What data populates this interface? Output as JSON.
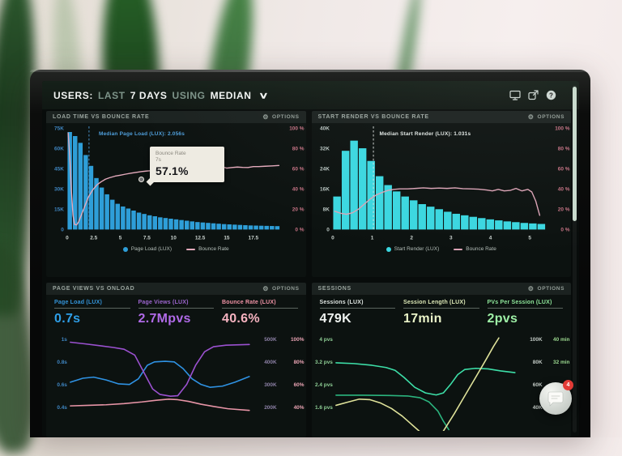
{
  "shared": {
    "options_label": "OPTIONS",
    "gear_glyph": "⚙"
  },
  "header": {
    "part1": "USERS:",
    "part2": "LAST",
    "part3": "7 DAYS",
    "part4": "USING",
    "part5": "MEDIAN",
    "chevron": "∨",
    "icons": [
      "monitor-icon",
      "share-icon",
      "help-icon"
    ]
  },
  "chat": {
    "badge": "4"
  },
  "chart_data": [
    {
      "type": "histogram",
      "title": "LOAD TIME VS BOUNCE RATE",
      "left_ticks": [
        "75K",
        "60K",
        "45K",
        "30K",
        "15K",
        "0"
      ],
      "right_ticks": [
        "100 %",
        "80 %",
        "60 %",
        "40 %",
        "20 %",
        "0 %"
      ],
      "x_ticks": [
        {
          "v": 0,
          "label": "0"
        },
        {
          "v": 2.5,
          "label": "2.5"
        },
        {
          "v": 5,
          "label": "5"
        },
        {
          "v": 7.5,
          "label": "7.5"
        },
        {
          "v": 10,
          "label": "10"
        },
        {
          "v": 12.5,
          "label": "12.5"
        },
        {
          "v": 15,
          "label": "15"
        },
        {
          "v": 17.5,
          "label": "17.5"
        }
      ],
      "x_max": 20,
      "y_max": 75,
      "bars": [
        72,
        69,
        64,
        55,
        47,
        38,
        31,
        26,
        22,
        19,
        17,
        15.5,
        14,
        12.5,
        11.5,
        10.5,
        9.8,
        9,
        8.5,
        8,
        7.5,
        7,
        6.5,
        6,
        5.5,
        5.2,
        4.9,
        4.6,
        4.3,
        4,
        3.8,
        3.6,
        3.4,
        3.2,
        3,
        2.9,
        2.8,
        2.7,
        2.6,
        2.5
      ],
      "bar_color": "#2e9ed8",
      "line_color": "#e4aabc",
      "line": [
        [
          0.1,
          95
        ],
        [
          0.25,
          72
        ],
        [
          0.4,
          38
        ],
        [
          0.55,
          14
        ],
        [
          0.7,
          5
        ],
        [
          0.9,
          4.5
        ],
        [
          1.1,
          8
        ],
        [
          1.4,
          16
        ],
        [
          1.7,
          24
        ],
        [
          2,
          32
        ],
        [
          2.4,
          39
        ],
        [
          2.8,
          44
        ],
        [
          3.2,
          47
        ],
        [
          3.6,
          49.5
        ],
        [
          4,
          51
        ],
        [
          4.5,
          52.5
        ],
        [
          5,
          53.5
        ],
        [
          5.5,
          54.5
        ],
        [
          6,
          55.5
        ],
        [
          6.5,
          56.3
        ],
        [
          7,
          57.1
        ],
        [
          7.5,
          57.6
        ],
        [
          8,
          58
        ],
        [
          8.5,
          58
        ],
        [
          9,
          58.3
        ],
        [
          9.5,
          59
        ],
        [
          10,
          59.5
        ],
        [
          10.5,
          60
        ],
        [
          11,
          60.4
        ],
        [
          11.5,
          61
        ],
        [
          12,
          61
        ],
        [
          12.5,
          60
        ],
        [
          12.9,
          62.8
        ],
        [
          13.2,
          62
        ],
        [
          13.6,
          60.5
        ],
        [
          14,
          62
        ],
        [
          14.5,
          62
        ],
        [
          15,
          60.5
        ],
        [
          15.5,
          61
        ],
        [
          16,
          61.5
        ],
        [
          16.5,
          61.2
        ],
        [
          17,
          61
        ],
        [
          17.5,
          62
        ],
        [
          18,
          62
        ],
        [
          18.6,
          62.3
        ],
        [
          19.3,
          62.6
        ],
        [
          19.9,
          63
        ]
      ],
      "median_x": 2.056,
      "median_label": "Median Page Load (LUX): 2.056s",
      "median_color": "#4f9fdc",
      "tooltip": {
        "title": "Bounce Rate",
        "sub": "7s",
        "value": "57.1%"
      },
      "legend": [
        {
          "label": "Page Load (LUX)",
          "color": "#2e9ed8"
        },
        {
          "label": "Bounce Rate",
          "color": "#e4aabc"
        }
      ],
      "left_tick_color": "#3f86c2",
      "right_tick_color": "#c47183",
      "x_tick_color": "#ccd5d1"
    },
    {
      "type": "histogram",
      "title": "START RENDER VS BOUNCE RATE",
      "left_ticks": [
        "40K",
        "32K",
        "24K",
        "16K",
        "8K",
        "0"
      ],
      "right_ticks": [
        "100 %",
        "80 %",
        "60 %",
        "40 %",
        "20 %",
        "0 %"
      ],
      "x_ticks": [
        {
          "v": 0,
          "label": "0"
        },
        {
          "v": 1,
          "label": "1"
        },
        {
          "v": 2,
          "label": "2"
        },
        {
          "v": 3,
          "label": "3"
        },
        {
          "v": 4,
          "label": "4"
        },
        {
          "v": 5,
          "label": "5"
        }
      ],
      "x_max": 5.4,
      "y_max": 40,
      "bars": [
        13,
        31,
        35,
        32,
        27,
        21,
        17.5,
        15,
        13,
        11.5,
        10,
        9,
        8,
        7,
        6.2,
        5.6,
        5,
        4.5,
        4,
        3.6,
        3.2,
        2.9,
        2.6,
        2.4,
        2.2
      ],
      "bar_color": "#3bd7e0",
      "line_color": "#dba4b6",
      "line": [
        [
          0.05,
          18
        ],
        [
          0.2,
          16
        ],
        [
          0.35,
          15
        ],
        [
          0.5,
          16.5
        ],
        [
          0.65,
          20
        ],
        [
          0.8,
          25
        ],
        [
          0.95,
          30
        ],
        [
          1.1,
          34
        ],
        [
          1.25,
          36.5
        ],
        [
          1.4,
          38.5
        ],
        [
          1.55,
          39.5
        ],
        [
          1.7,
          40
        ],
        [
          1.9,
          40
        ],
        [
          2.1,
          40.5
        ],
        [
          2.3,
          41
        ],
        [
          2.5,
          40.5
        ],
        [
          2.7,
          40.8
        ],
        [
          2.9,
          40.5
        ],
        [
          3.1,
          41
        ],
        [
          3.3,
          40.2
        ],
        [
          3.5,
          40
        ],
        [
          3.7,
          39.8
        ],
        [
          3.9,
          39
        ],
        [
          4.05,
          38
        ],
        [
          4.2,
          39.5
        ],
        [
          4.35,
          38
        ],
        [
          4.5,
          38.5
        ],
        [
          4.65,
          40.5
        ],
        [
          4.8,
          38
        ],
        [
          4.95,
          39.5
        ],
        [
          5.05,
          37
        ],
        [
          5.15,
          28
        ],
        [
          5.25,
          14
        ]
      ],
      "median_x": 1.031,
      "median_label": "Median Start Render (LUX): 1.031s",
      "median_color": "#dfe6e3",
      "legend": [
        {
          "label": "Start Render (LUX)",
          "color": "#3bd7e0"
        },
        {
          "label": "Bounce Rate",
          "color": "#dba4b6"
        }
      ],
      "left_tick_color": "#b9c5c1",
      "right_tick_color": "#c47183",
      "x_tick_color": "#ccd5d1"
    },
    {
      "type": "multiline",
      "title": "PAGE VIEWS VS ONLOAD",
      "metrics": [
        {
          "label": "Page Load (LUX)",
          "value": "0.7s",
          "color": "#3494d8",
          "value_color": "#2e9fe8"
        },
        {
          "label": "Page Views (LUX)",
          "value": "2.7Mpvs",
          "color": "#9d66cf",
          "value_color": "#b06ae8"
        },
        {
          "label": "Bounce Rate (LUX)",
          "value": "40.6%",
          "color": "#ef93a5",
          "value_color": "#f6b3c0"
        }
      ],
      "left_ticks": [
        "1s",
        "0.8s",
        "0.6s",
        "0.4s"
      ],
      "rcol1": [
        "500K",
        "400K",
        "300K",
        "200K"
      ],
      "rcol2": [
        "100%",
        "80%",
        "60%",
        "40%"
      ],
      "left_tick_color": "#3f86c2",
      "rcol1_color": "#8d81a6",
      "rcol2_color": "#e9a3b3",
      "lines": [
        {
          "name": "page-load",
          "color": "#2f92e3",
          "v0": 1.0,
          "step": 0.2,
          "points": [
            [
              0,
              0.62
            ],
            [
              0.07,
              0.655
            ],
            [
              0.13,
              0.665
            ],
            [
              0.2,
              0.64
            ],
            [
              0.27,
              0.605
            ],
            [
              0.33,
              0.6
            ],
            [
              0.38,
              0.65
            ],
            [
              0.43,
              0.77
            ],
            [
              0.47,
              0.8
            ],
            [
              0.53,
              0.805
            ],
            [
              0.58,
              0.8
            ],
            [
              0.63,
              0.74
            ],
            [
              0.68,
              0.65
            ],
            [
              0.73,
              0.6
            ],
            [
              0.78,
              0.575
            ],
            [
              0.85,
              0.585
            ],
            [
              0.92,
              0.62
            ],
            [
              1,
              0.67
            ]
          ]
        },
        {
          "name": "page-views",
          "color": "#9b51d0",
          "v0": 500,
          "step": 100,
          "points": [
            [
              0,
              487
            ],
            [
              0.08,
              480
            ],
            [
              0.16,
              472
            ],
            [
              0.24,
              464
            ],
            [
              0.3,
              456
            ],
            [
              0.36,
              430
            ],
            [
              0.42,
              340
            ],
            [
              0.46,
              280
            ],
            [
              0.5,
              256
            ],
            [
              0.56,
              248
            ],
            [
              0.6,
              250
            ],
            [
              0.65,
              300
            ],
            [
              0.7,
              385
            ],
            [
              0.75,
              445
            ],
            [
              0.8,
              467
            ],
            [
              0.87,
              474
            ],
            [
              1,
              477
            ]
          ]
        },
        {
          "name": "bounce-rate",
          "color": "#e794a6",
          "v0": 100,
          "step": 20,
          "points": [
            [
              0,
              41
            ],
            [
              0.1,
              41.5
            ],
            [
              0.2,
              42
            ],
            [
              0.3,
              43
            ],
            [
              0.4,
              44.5
            ],
            [
              0.48,
              46
            ],
            [
              0.55,
              47
            ],
            [
              0.6,
              46.5
            ],
            [
              0.66,
              45
            ],
            [
              0.73,
              42.5
            ],
            [
              0.8,
              40.5
            ],
            [
              0.88,
              38.5
            ],
            [
              1,
              37
            ]
          ]
        }
      ]
    },
    {
      "type": "multiline",
      "title": "SESSIONS",
      "metrics": [
        {
          "label": "Sessions (LUX)",
          "value": "479K",
          "color": "#dde4e0",
          "value_color": "#eff3f0"
        },
        {
          "label": "Session Length (LUX)",
          "value": "17min",
          "color": "#dce8b6",
          "value_color": "#eaf3c8"
        },
        {
          "label": "PVs Per Session (LUX)",
          "value": "2pvs",
          "color": "#8ee69a",
          "value_color": "#9ef0a6"
        }
      ],
      "left_ticks": [
        "4 pvs",
        "3.2 pvs",
        "2.4 pvs",
        "1.6 pvs"
      ],
      "rcol1": [
        "100K",
        "80K",
        "60K",
        "40K"
      ],
      "rcol2": [
        "40 min",
        "32 min",
        "24 min",
        ""
      ],
      "left_tick_color": "#8fcf96",
      "rcol1_color": "#c3cbc6",
      "rcol2_color": "#9bd88f",
      "lines": [
        {
          "name": "sessions",
          "color": "#3ddfa8",
          "v0": 4,
          "step": 0.8,
          "points": [
            [
              0,
              3.17
            ],
            [
              0.1,
              3.14
            ],
            [
              0.2,
              3.08
            ],
            [
              0.28,
              3.0
            ],
            [
              0.33,
              2.9
            ],
            [
              0.38,
              2.65
            ],
            [
              0.44,
              2.3
            ],
            [
              0.5,
              2.1
            ],
            [
              0.56,
              2.03
            ],
            [
              0.6,
              2.1
            ],
            [
              0.64,
              2.4
            ],
            [
              0.68,
              2.75
            ],
            [
              0.72,
              2.93
            ],
            [
              0.78,
              2.97
            ],
            [
              0.85,
              2.95
            ],
            [
              0.92,
              2.88
            ],
            [
              1,
              2.82
            ]
          ]
        },
        {
          "name": "pvs-per-session",
          "color": "#2bb47e",
          "v0": 4,
          "step": 0.8,
          "points": [
            [
              0,
              2.02
            ],
            [
              0.15,
              2.02
            ],
            [
              0.3,
              2.01
            ],
            [
              0.4,
              1.99
            ],
            [
              0.47,
              1.93
            ],
            [
              0.52,
              1.78
            ],
            [
              0.57,
              1.45
            ],
            [
              0.6,
              1.1
            ],
            [
              0.63,
              0.8
            ]
          ]
        },
        {
          "name": "session-length",
          "color": "#dfe29a",
          "v0": 4,
          "step": 0.8,
          "points": [
            [
              0,
              1.66
            ],
            [
              0.07,
              1.78
            ],
            [
              0.13,
              1.88
            ],
            [
              0.19,
              1.86
            ],
            [
              0.25,
              1.74
            ],
            [
              0.31,
              1.55
            ],
            [
              0.37,
              1.28
            ],
            [
              0.42,
              1.0
            ],
            [
              0.47,
              0.72
            ],
            [
              0.55,
              0.5
            ],
            [
              0.6,
              0.75
            ],
            [
              0.66,
              1.35
            ],
            [
              0.72,
              2.0
            ],
            [
              0.78,
              2.65
            ],
            [
              0.84,
              3.3
            ],
            [
              0.88,
              3.75
            ],
            [
              0.91,
              4.05
            ]
          ]
        }
      ]
    }
  ]
}
